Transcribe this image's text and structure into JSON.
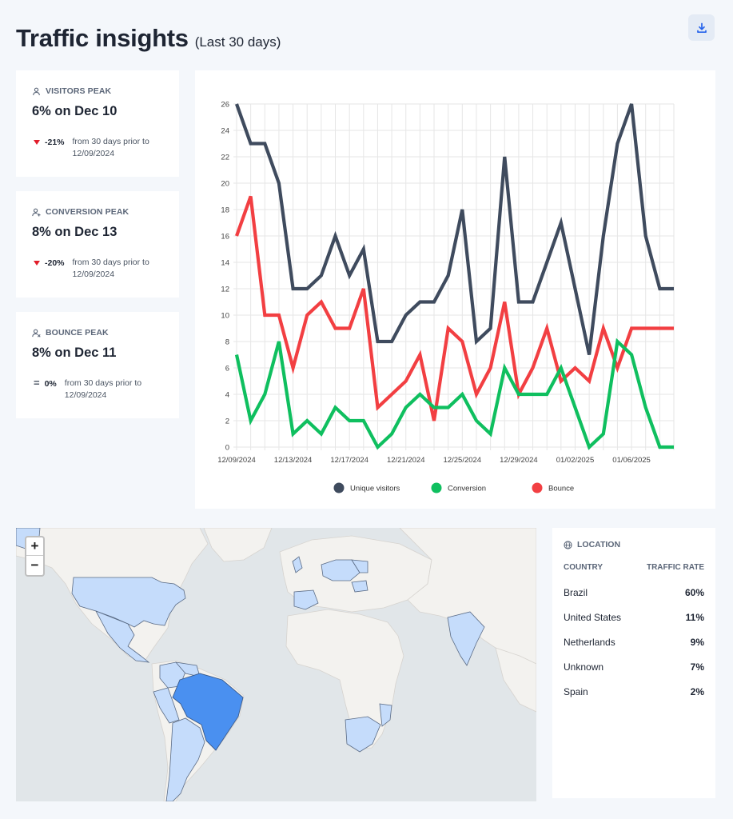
{
  "header": {
    "title": "Traffic insights",
    "subtitle": "(Last 30 days)"
  },
  "toolbar": {
    "download_icon": "download-icon"
  },
  "cards": [
    {
      "label": "VISITORS PEAK",
      "icon": "user-icon",
      "value": "6% on Dec 10",
      "change": "-21%",
      "direction": "down",
      "desc_line1": "from 30 days prior to",
      "desc_line2": "12/09/2024"
    },
    {
      "label": "CONVERSION PEAK",
      "icon": "user-plus-icon",
      "value": "8% on Dec 13",
      "change": "-20%",
      "direction": "down",
      "desc_line1": "from 30 days prior to",
      "desc_line2": "12/09/2024"
    },
    {
      "label": "BOUNCE PEAK",
      "icon": "user-x-icon",
      "value": "8% on Dec 11",
      "change": "0%",
      "direction": "flat",
      "desc_line1": "from 30 days prior to",
      "desc_line2": "12/09/2024"
    }
  ],
  "chart_data": {
    "type": "line",
    "x": [
      "12/09/2024",
      "12/10/2024",
      "12/11/2024",
      "12/12/2024",
      "12/13/2024",
      "12/14/2024",
      "12/15/2024",
      "12/16/2024",
      "12/17/2024",
      "12/18/2024",
      "12/19/2024",
      "12/20/2024",
      "12/21/2024",
      "12/22/2024",
      "12/23/2024",
      "12/24/2024",
      "12/25/2024",
      "12/26/2024",
      "12/27/2024",
      "12/28/2024",
      "12/29/2024",
      "12/30/2024",
      "12/31/2024",
      "01/01/2025",
      "01/02/2025",
      "01/03/2025",
      "01/04/2025",
      "01/05/2025",
      "01/06/2025",
      "01/07/2025",
      "01/08/2025",
      "01/09/2025"
    ],
    "x_tick_labels": [
      "12/09/2024",
      "12/13/2024",
      "12/17/2024",
      "12/21/2024",
      "12/25/2024",
      "12/29/2024",
      "01/02/2025",
      "01/06/2025"
    ],
    "y_ticks": [
      0,
      2,
      4,
      6,
      8,
      10,
      12,
      14,
      16,
      18,
      20,
      22,
      24,
      26
    ],
    "ylim": [
      0,
      26
    ],
    "grid": true,
    "legend_position": "bottom",
    "series": [
      {
        "name": "Unique visitors",
        "color": "#3f4b5e",
        "values": [
          26,
          23,
          23,
          20,
          12,
          12,
          13,
          16,
          13,
          15,
          8,
          8,
          10,
          11,
          11,
          13,
          18,
          8,
          9,
          22,
          11,
          11,
          14,
          17,
          12,
          7,
          16,
          23,
          26,
          16,
          12,
          12
        ]
      },
      {
        "name": "Conversion",
        "color": "#0fbf5f",
        "values": [
          7,
          2,
          4,
          8,
          1,
          2,
          1,
          3,
          2,
          2,
          0,
          1,
          3,
          4,
          3,
          3,
          4,
          2,
          1,
          6,
          4,
          4,
          4,
          6,
          3,
          0,
          1,
          8,
          7,
          3,
          0,
          0
        ]
      },
      {
        "name": "Bounce",
        "color": "#f23f42",
        "values": [
          16,
          19,
          10,
          10,
          6,
          10,
          11,
          9,
          9,
          12,
          3,
          4,
          5,
          7,
          2,
          9,
          8,
          4,
          6,
          11,
          4,
          6,
          9,
          5,
          6,
          5,
          9,
          6,
          9,
          9,
          9,
          9
        ]
      }
    ]
  },
  "map": {
    "zoom_in": "+",
    "zoom_out": "−"
  },
  "location": {
    "title": "LOCATION",
    "icon": "globe-icon",
    "col_country": "COUNTRY",
    "col_rate": "TRAFFIC RATE",
    "rows": [
      {
        "country": "Brazil",
        "rate": "60%"
      },
      {
        "country": "United States",
        "rate": "11%"
      },
      {
        "country": "Netherlands",
        "rate": "9%"
      },
      {
        "country": "Unknown",
        "rate": "7%"
      },
      {
        "country": "Spain",
        "rate": "2%"
      }
    ]
  }
}
